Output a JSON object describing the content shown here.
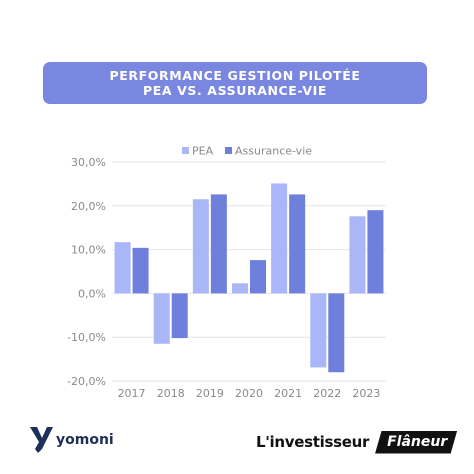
{
  "header": {
    "title_line1": "PERFORMANCE GESTION PILOTÉE",
    "title_line2": "PEA VS. ASSURANCE-VIE"
  },
  "colors": {
    "title_bg": "#7a87e0",
    "pea": "#a9b6f8",
    "assurance_vie": "#6f7fdc",
    "grid": "#e6e6e6",
    "axis_text": "#8a8a8a"
  },
  "chart_data": {
    "type": "bar",
    "categories": [
      "2017",
      "2018",
      "2019",
      "2020",
      "2021",
      "2022",
      "2023"
    ],
    "series": [
      {
        "name": "PEA",
        "values": [
          11.7,
          -11.5,
          21.5,
          2.3,
          25.1,
          -16.9,
          17.6
        ]
      },
      {
        "name": "Assurance-vie",
        "values": [
          10.4,
          -10.2,
          22.6,
          7.6,
          22.6,
          -18.0,
          19.0
        ]
      }
    ],
    "y_ticks": [
      "30,0%",
      "20,0%",
      "10,0%",
      "0,0%",
      "-10,0%",
      "-20,0%"
    ],
    "ylim": [
      -20,
      30
    ],
    "legend_position": "top-center",
    "grid": "horizontal"
  },
  "footer": {
    "logo_left_text": "yomoni",
    "logo_right_text": "L'investisseur",
    "logo_right_badge": "Flâneur"
  }
}
